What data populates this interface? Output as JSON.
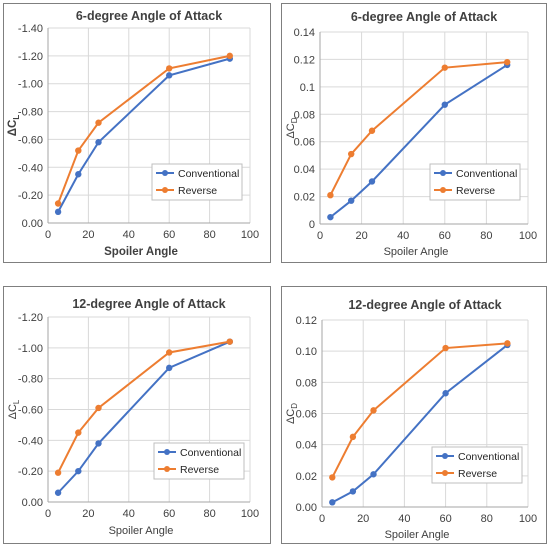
{
  "colors": {
    "conventional": "#4472c4",
    "reverse": "#ed7d31"
  },
  "chart_data": [
    {
      "type": "line",
      "title": "6-degree Angle of Attack",
      "xlabel": "Spoiler Angle",
      "ylabel_main": "ΔC",
      "ylabel_sub": "L",
      "xlim": [
        0,
        100
      ],
      "ylim": [
        0,
        -1.4
      ],
      "x_ticks": [
        "0",
        "20",
        "40",
        "60",
        "80",
        "100"
      ],
      "y_ticks": [
        "0.00",
        "-0.20",
        "-0.40",
        "-0.60",
        "-0.80",
        "-1.00",
        "-1.20",
        "-1.40"
      ],
      "x": [
        5,
        15,
        25,
        60,
        90
      ],
      "legend_position": "lower-right",
      "series": [
        {
          "name": "Conventional",
          "values": [
            -0.08,
            -0.35,
            -0.58,
            -1.06,
            -1.18
          ]
        },
        {
          "name": "Reverse",
          "values": [
            -0.14,
            -0.52,
            -0.72,
            -1.11,
            -1.2
          ]
        }
      ]
    },
    {
      "type": "line",
      "title": "6-degree Angle of Attack",
      "xlabel": "Spoiler Angle",
      "ylabel_main": "ΔC",
      "ylabel_sub": "D",
      "xlim": [
        0,
        100
      ],
      "ylim": [
        0,
        0.14
      ],
      "x_ticks": [
        "0",
        "20",
        "40",
        "60",
        "80",
        "100"
      ],
      "y_ticks": [
        "0",
        "0.02",
        "0.04",
        "0.06",
        "0.08",
        "0.1",
        "0.12",
        "0.14"
      ],
      "x": [
        5,
        15,
        25,
        60,
        90
      ],
      "legend_position": "lower-right",
      "series": [
        {
          "name": "Conventional",
          "values": [
            0.005,
            0.017,
            0.031,
            0.087,
            0.116
          ]
        },
        {
          "name": "Reverse",
          "values": [
            0.021,
            0.051,
            0.068,
            0.114,
            0.118
          ]
        }
      ]
    },
    {
      "type": "line",
      "title": "12-degree Angle of Attack",
      "xlabel": "Spoiler Angle",
      "ylabel_main": "ΔC",
      "ylabel_sub": "L",
      "xlim": [
        0,
        100
      ],
      "ylim": [
        0,
        -1.2
      ],
      "x_ticks": [
        "0",
        "20",
        "40",
        "60",
        "80",
        "100"
      ],
      "y_ticks": [
        "0.00",
        "-0.20",
        "-0.40",
        "-0.60",
        "-0.80",
        "-1.00",
        "-1.20"
      ],
      "x": [
        5,
        15,
        25,
        60,
        90
      ],
      "legend_position": "lower-right",
      "series": [
        {
          "name": "Conventional",
          "values": [
            -0.06,
            -0.2,
            -0.38,
            -0.87,
            -1.04
          ]
        },
        {
          "name": "Reverse",
          "values": [
            -0.19,
            -0.45,
            -0.61,
            -0.97,
            -1.04
          ]
        }
      ]
    },
    {
      "type": "line",
      "title": "12-degree Angle of Attack",
      "xlabel": "Spoiler Angle",
      "ylabel_main": "ΔC",
      "ylabel_sub": "D",
      "xlim": [
        0,
        100
      ],
      "ylim": [
        0,
        0.12
      ],
      "x_ticks": [
        "0",
        "20",
        "40",
        "60",
        "80",
        "100"
      ],
      "y_ticks": [
        "0.00",
        "0.02",
        "0.04",
        "0.06",
        "0.08",
        "0.10",
        "0.12"
      ],
      "x": [
        5,
        15,
        25,
        60,
        90
      ],
      "legend_position": "lower-right",
      "series": [
        {
          "name": "Conventional",
          "values": [
            0.003,
            0.01,
            0.021,
            0.073,
            0.104
          ]
        },
        {
          "name": "Reverse",
          "values": [
            0.019,
            0.045,
            0.062,
            0.102,
            0.105
          ]
        }
      ]
    }
  ]
}
